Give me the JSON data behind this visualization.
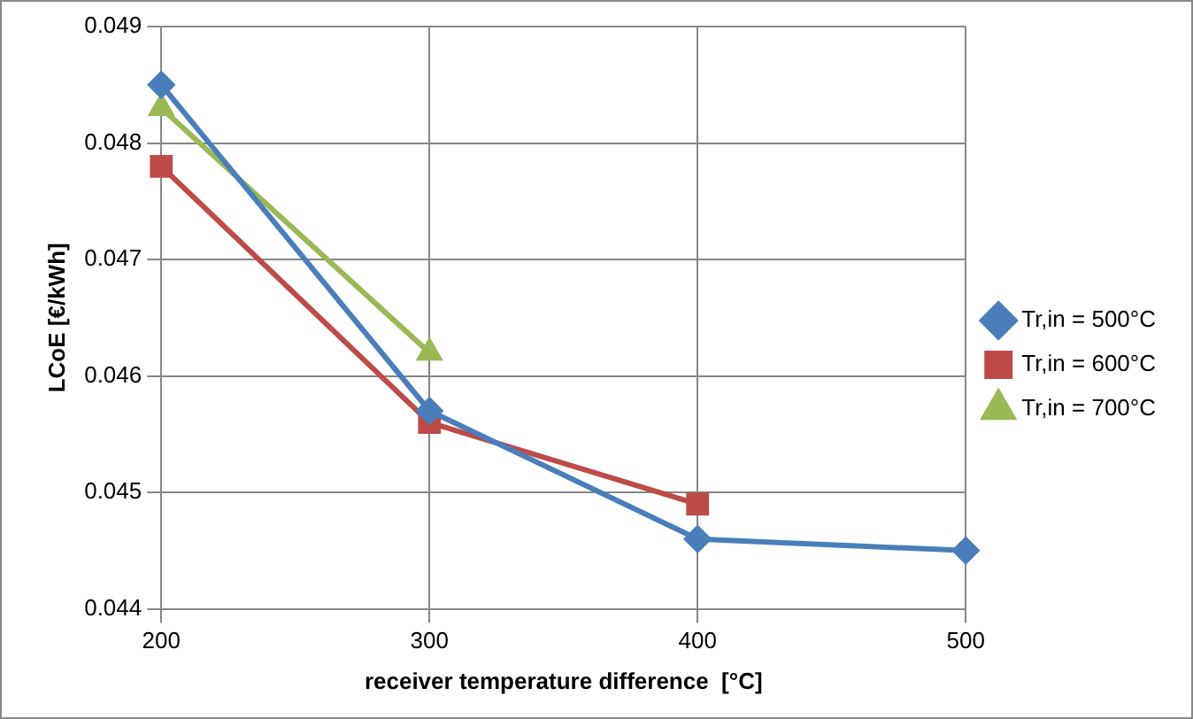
{
  "chart_data": {
    "type": "line",
    "xlabel": "receiver temperature difference  [°C]",
    "ylabel": "LCoE [€/kWh]",
    "xlim": [
      200,
      500
    ],
    "xticks": [
      200,
      300,
      400,
      500
    ],
    "ylim": [
      0.044,
      0.049
    ],
    "yticks": [
      0.044,
      0.045,
      0.046,
      0.047,
      0.048,
      0.049
    ],
    "grid": true,
    "legend": "right",
    "line_style": "solid",
    "series": [
      {
        "name": "Tr,in = 500°C",
        "color": "#4a7ebb",
        "marker": "diamond",
        "x": [
          200,
          300,
          400,
          500
        ],
        "values": [
          0.0485,
          0.0457,
          0.0446,
          0.0445
        ]
      },
      {
        "name": "Tr,in = 600°C",
        "color": "#be4b48",
        "marker": "square",
        "x": [
          200,
          300,
          400
        ],
        "values": [
          0.0478,
          0.0456,
          0.0449
        ]
      },
      {
        "name": "Tr,in = 700°C",
        "color": "#98b954",
        "marker": "triangle",
        "x": [
          200,
          300
        ],
        "values": [
          0.0483,
          0.0462
        ]
      }
    ]
  }
}
